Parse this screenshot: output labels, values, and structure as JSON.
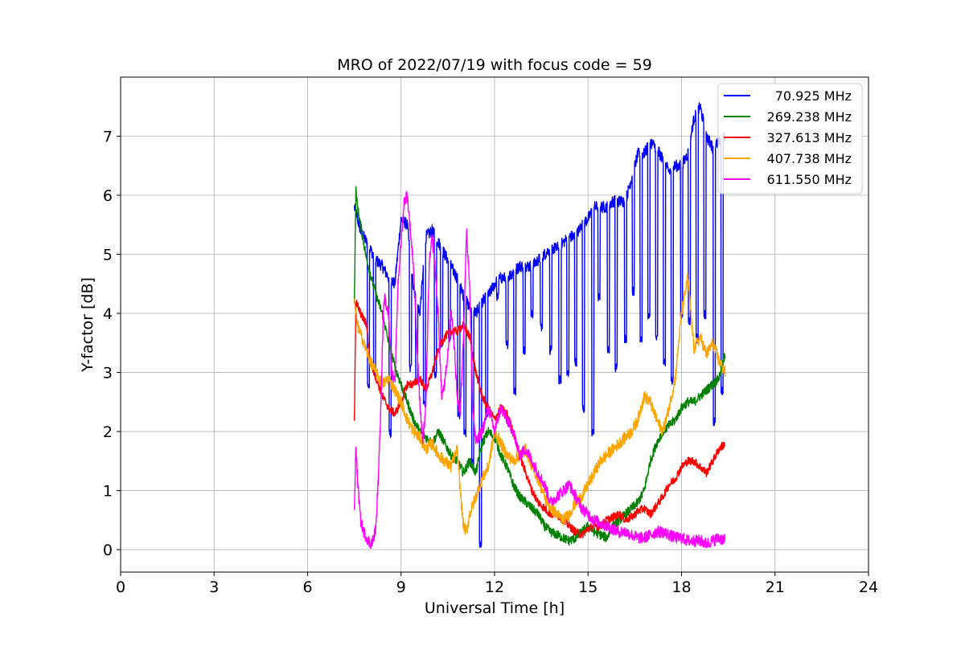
{
  "chart_data": {
    "type": "line",
    "title": "MRO of 2022/07/19 with focus code = 59",
    "xlabel": "Universal Time [h]",
    "ylabel": "Y-factor [dB]",
    "xlim": [
      0,
      24
    ],
    "ylim": [
      -0.38,
      8.0
    ],
    "xticks": [
      0,
      3,
      6,
      9,
      12,
      15,
      18,
      21,
      24
    ],
    "yticks": [
      0,
      1,
      2,
      3,
      4,
      5,
      6,
      7
    ],
    "grid": true,
    "legend_position": "top-right",
    "series": [
      {
        "name": "70.925 MHz",
        "color": "#0000ff",
        "noise": 0.1,
        "x": [
          7.5,
          7.6,
          7.7,
          7.8,
          8.0,
          8.2,
          8.4,
          8.6,
          8.8,
          9.0,
          9.2,
          9.4,
          9.6,
          9.8,
          10.0,
          10.2,
          10.4,
          10.6,
          10.8,
          11.0,
          11.2,
          11.4,
          11.6,
          11.8,
          12.0,
          12.2,
          12.4,
          12.6,
          12.8,
          13.0,
          13.2,
          13.4,
          13.6,
          13.8,
          14.0,
          14.2,
          14.4,
          14.6,
          14.8,
          15.0,
          15.2,
          15.4,
          15.6,
          15.8,
          16.0,
          16.2,
          16.4,
          16.6,
          16.8,
          17.0,
          17.2,
          17.4,
          17.6,
          17.8,
          18.0,
          18.2,
          18.4,
          18.6,
          18.8,
          19.0,
          19.2,
          19.4
        ],
        "y": [
          5.8,
          5.6,
          5.4,
          5.3,
          5.1,
          4.9,
          4.8,
          4.6,
          4.5,
          5.6,
          5.5,
          4.4,
          4.0,
          5.3,
          5.4,
          5.2,
          5.0,
          4.8,
          4.6,
          4.3,
          4.1,
          4.0,
          4.2,
          4.3,
          4.5,
          4.6,
          4.6,
          4.7,
          4.8,
          4.8,
          4.8,
          4.9,
          5.0,
          5.1,
          5.1,
          5.2,
          5.3,
          5.3,
          5.5,
          5.6,
          5.8,
          5.8,
          5.8,
          5.9,
          5.9,
          5.9,
          6.3,
          6.7,
          6.7,
          6.9,
          6.8,
          6.6,
          6.4,
          6.5,
          6.5,
          6.7,
          7.3,
          7.5,
          7.0,
          6.8,
          6.9,
          7.0
        ],
        "dips": [
          [
            7.95,
            2.7
          ],
          [
            8.15,
            2.9
          ],
          [
            8.65,
            1.9
          ],
          [
            9.3,
            3.0
          ],
          [
            9.5,
            2.8
          ],
          [
            9.75,
            2.4
          ],
          [
            10.1,
            2.9
          ],
          [
            10.3,
            3.4
          ],
          [
            10.55,
            3.5
          ],
          [
            10.85,
            2.2
          ],
          [
            11.05,
            1.9
          ],
          [
            11.3,
            1.4
          ],
          [
            11.55,
            0.0
          ],
          [
            11.75,
            2.2
          ],
          [
            12.1,
            4.2
          ],
          [
            12.4,
            3.4
          ],
          [
            12.65,
            2.6
          ],
          [
            12.95,
            3.3
          ],
          [
            13.2,
            3.9
          ],
          [
            13.5,
            3.7
          ],
          [
            13.8,
            3.3
          ],
          [
            14.1,
            2.8
          ],
          [
            14.35,
            2.9
          ],
          [
            14.6,
            3.1
          ],
          [
            14.85,
            2.3
          ],
          [
            15.15,
            1.9
          ],
          [
            15.35,
            4.2
          ],
          [
            15.65,
            3.3
          ],
          [
            15.9,
            3.0
          ],
          [
            16.2,
            3.5
          ],
          [
            16.45,
            4.3
          ],
          [
            16.7,
            3.5
          ],
          [
            16.95,
            3.9
          ],
          [
            17.2,
            3.5
          ],
          [
            17.45,
            3.1
          ],
          [
            17.7,
            2.8
          ],
          [
            18.0,
            3.9
          ],
          [
            18.25,
            3.8
          ],
          [
            18.5,
            3.5
          ],
          [
            18.75,
            3.9
          ],
          [
            19.05,
            2.1
          ],
          [
            19.3,
            2.6
          ]
        ]
      },
      {
        "name": "269.238 MHz",
        "color": "#008000",
        "noise": 0.08,
        "x": [
          7.5,
          7.55,
          7.6,
          7.7,
          7.8,
          7.9,
          8.0,
          8.2,
          8.4,
          8.6,
          8.8,
          9.0,
          9.2,
          9.4,
          9.6,
          9.8,
          10.0,
          10.2,
          10.4,
          10.6,
          10.8,
          11.0,
          11.2,
          11.4,
          11.6,
          11.8,
          12.0,
          12.2,
          12.4,
          12.6,
          12.8,
          13.0,
          13.2,
          13.4,
          13.6,
          13.8,
          14.0,
          14.2,
          14.4,
          14.6,
          14.8,
          15.0,
          15.2,
          15.4,
          15.6,
          15.8,
          16.0,
          16.2,
          16.4,
          16.6,
          16.8,
          17.0,
          17.2,
          17.4,
          17.6,
          17.8,
          18.0,
          18.2,
          18.4,
          18.6,
          18.8,
          19.0,
          19.2,
          19.4
        ],
        "y": [
          4.2,
          6.1,
          5.8,
          5.5,
          5.2,
          4.9,
          4.7,
          4.3,
          4.0,
          3.5,
          3.1,
          2.8,
          2.5,
          2.2,
          2.0,
          1.9,
          1.8,
          2.0,
          1.8,
          1.6,
          1.5,
          1.3,
          1.5,
          1.3,
          1.8,
          2.0,
          1.9,
          1.6,
          1.4,
          1.1,
          0.9,
          0.8,
          0.7,
          0.6,
          0.4,
          0.3,
          0.25,
          0.2,
          0.15,
          0.2,
          0.3,
          0.4,
          0.3,
          0.25,
          0.2,
          0.4,
          0.5,
          0.6,
          0.7,
          0.8,
          1.0,
          1.5,
          1.8,
          2.0,
          2.1,
          2.2,
          2.4,
          2.5,
          2.5,
          2.6,
          2.7,
          2.8,
          2.9,
          3.3
        ]
      },
      {
        "name": "327.613 MHz",
        "color": "#ff0000",
        "noise": 0.07,
        "x": [
          7.5,
          7.55,
          7.7,
          7.9,
          8.0,
          8.2,
          8.4,
          8.6,
          8.8,
          9.0,
          9.2,
          9.4,
          9.6,
          9.8,
          10.0,
          10.2,
          10.4,
          10.6,
          10.8,
          11.0,
          11.2,
          11.4,
          11.6,
          11.8,
          12.0,
          12.2,
          12.4,
          12.6,
          12.8,
          13.0,
          13.2,
          13.4,
          13.6,
          13.8,
          14.0,
          14.2,
          14.4,
          14.6,
          14.8,
          15.0,
          15.2,
          15.4,
          15.6,
          15.8,
          16.0,
          16.2,
          16.4,
          16.6,
          16.8,
          17.0,
          17.2,
          17.4,
          17.6,
          17.8,
          18.0,
          18.2,
          18.4,
          18.6,
          18.8,
          19.0,
          19.2,
          19.4
        ],
        "y": [
          2.2,
          4.2,
          4.0,
          3.8,
          3.2,
          2.9,
          2.6,
          2.4,
          2.3,
          2.5,
          2.8,
          2.8,
          2.9,
          2.7,
          3.0,
          3.4,
          3.6,
          3.7,
          3.7,
          3.8,
          3.6,
          3.0,
          2.6,
          2.4,
          2.2,
          2.4,
          2.3,
          2.0,
          1.6,
          1.3,
          1.0,
          0.8,
          0.7,
          0.6,
          0.6,
          0.5,
          0.4,
          0.3,
          0.25,
          0.35,
          0.4,
          0.4,
          0.5,
          0.55,
          0.6,
          0.5,
          0.55,
          0.65,
          0.7,
          0.6,
          0.75,
          0.9,
          1.1,
          1.2,
          1.4,
          1.5,
          1.5,
          1.4,
          1.3,
          1.5,
          1.7,
          1.8
        ]
      },
      {
        "name": "407.738 MHz",
        "color": "#ffa500",
        "noise": 0.1,
        "x": [
          7.5,
          7.6,
          7.8,
          8.0,
          8.2,
          8.4,
          8.6,
          8.8,
          9.0,
          9.2,
          9.4,
          9.6,
          9.8,
          10.0,
          10.2,
          10.4,
          10.6,
          10.8,
          10.9,
          11.0,
          11.1,
          11.2,
          11.4,
          11.6,
          11.8,
          12.0,
          12.2,
          12.4,
          12.6,
          12.8,
          13.0,
          13.2,
          13.4,
          13.6,
          13.8,
          14.0,
          14.2,
          14.4,
          14.6,
          14.8,
          15.0,
          15.2,
          15.4,
          15.6,
          15.8,
          16.0,
          16.2,
          16.4,
          16.6,
          16.8,
          17.0,
          17.2,
          17.4,
          17.6,
          17.8,
          18.0,
          18.2,
          18.4,
          18.6,
          18.8,
          19.0,
          19.2,
          19.4
        ],
        "y": [
          4.2,
          3.8,
          3.5,
          3.2,
          3.0,
          2.8,
          2.9,
          2.7,
          2.5,
          2.2,
          2.0,
          1.9,
          1.7,
          1.8,
          1.6,
          1.5,
          1.4,
          1.7,
          1.0,
          0.4,
          0.3,
          0.6,
          0.9,
          1.2,
          1.4,
          2.0,
          1.8,
          1.6,
          1.5,
          1.6,
          1.7,
          1.4,
          1.2,
          0.9,
          0.7,
          0.6,
          0.5,
          0.6,
          0.8,
          0.9,
          1.1,
          1.3,
          1.5,
          1.6,
          1.7,
          1.8,
          1.9,
          2.0,
          2.2,
          2.6,
          2.5,
          2.2,
          2.0,
          2.4,
          2.9,
          4.0,
          4.6,
          3.4,
          3.6,
          3.3,
          3.5,
          3.2,
          3.0
        ]
      },
      {
        "name": "611.550 MHz",
        "color": "#ff00ff",
        "noise": 0.1,
        "x": [
          7.5,
          7.55,
          7.6,
          7.7,
          7.8,
          7.9,
          8.0,
          8.1,
          8.2,
          8.3,
          8.45,
          8.6,
          8.7,
          8.8,
          8.9,
          9.0,
          9.1,
          9.2,
          9.3,
          9.4,
          9.5,
          9.6,
          9.7,
          9.8,
          9.9,
          10.0,
          10.1,
          10.2,
          10.3,
          10.4,
          10.5,
          10.6,
          10.7,
          10.8,
          10.9,
          11.0,
          11.1,
          11.2,
          11.3,
          11.4,
          11.6,
          11.8,
          12.0,
          12.2,
          12.4,
          12.6,
          12.8,
          13.0,
          13.2,
          13.4,
          13.6,
          13.8,
          14.0,
          14.2,
          14.4,
          14.6,
          14.8,
          15.0,
          15.2,
          15.4,
          15.6,
          15.8,
          16.0,
          16.2,
          16.4,
          16.6,
          16.8,
          17.0,
          17.2,
          17.4,
          17.6,
          17.8,
          18.0,
          18.2,
          18.4,
          18.6,
          18.8,
          19.0,
          19.2,
          19.4
        ],
        "y": [
          0.6,
          1.8,
          1.2,
          0.5,
          0.3,
          0.2,
          0.1,
          0.15,
          0.4,
          1.6,
          4.3,
          4.0,
          3.0,
          2.8,
          4.5,
          5.2,
          5.9,
          6.0,
          5.4,
          4.8,
          3.6,
          2.5,
          1.8,
          2.5,
          4.8,
          5.3,
          4.7,
          3.9,
          2.6,
          2.8,
          3.3,
          4.1,
          3.5,
          2.6,
          2.3,
          3.6,
          5.4,
          4.5,
          2.4,
          1.8,
          2.0,
          2.4,
          2.0,
          2.4,
          2.2,
          2.0,
          1.6,
          1.7,
          1.5,
          1.3,
          1.1,
          0.8,
          0.9,
          1.0,
          1.1,
          0.9,
          0.7,
          0.6,
          0.5,
          0.45,
          0.4,
          0.35,
          0.3,
          0.3,
          0.25,
          0.2,
          0.2,
          0.25,
          0.3,
          0.3,
          0.25,
          0.2,
          0.2,
          0.15,
          0.15,
          0.15,
          0.1,
          0.15,
          0.2,
          0.15
        ]
      }
    ]
  }
}
